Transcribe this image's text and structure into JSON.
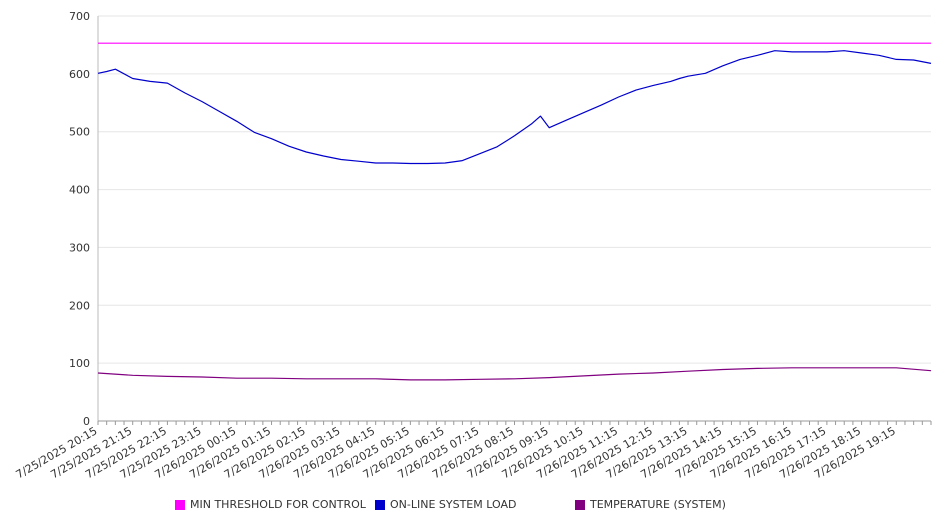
{
  "chart_data": {
    "type": "line",
    "title": "",
    "xlabel": "",
    "ylabel": "",
    "ylim": [
      0,
      700
    ],
    "yticks": [
      0,
      100,
      200,
      300,
      400,
      500,
      600,
      700
    ],
    "grid": true,
    "legend_position": "bottom",
    "x_tick_labels": [
      "7/25/2025 20:15",
      "7/25/2025 21:15",
      "7/25/2025 22:15",
      "7/25/2025 23:15",
      "7/26/2025 00:15",
      "7/26/2025 01:15",
      "7/26/2025 02:15",
      "7/26/2025 03:15",
      "7/26/2025 04:15",
      "7/26/2025 05:15",
      "7/26/2025 06:15",
      "7/26/2025 07:15",
      "7/26/2025 08:15",
      "7/26/2025 09:15",
      "7/26/2025 10:15",
      "7/26/2025 11:15",
      "7/26/2025 12:15",
      "7/26/2025 13:15",
      "7/26/2025 14:15",
      "7/26/2025 15:15",
      "7/26/2025 16:15",
      "7/26/2025 17:15",
      "7/26/2025 18:15",
      "7/26/2025 19:15"
    ],
    "series": [
      {
        "name": "MIN THRESHOLD FOR CONTROL",
        "color": "#ff00ff",
        "x": [
          "7/25/2025 20:15",
          "7/26/2025 20:15"
        ],
        "values": [
          653,
          653
        ]
      },
      {
        "name": "ON-LINE SYSTEM LOAD",
        "color": "#0000cc",
        "x": [
          "7/25/2025 20:15",
          "7/25/2025 20:30",
          "7/25/2025 20:45",
          "7/25/2025 21:15",
          "7/25/2025 21:45",
          "7/25/2025 22:15",
          "7/25/2025 22:45",
          "7/25/2025 23:15",
          "7/25/2025 23:45",
          "7/26/2025 00:15",
          "7/26/2025 00:45",
          "7/26/2025 01:15",
          "7/26/2025 01:45",
          "7/26/2025 02:15",
          "7/26/2025 02:45",
          "7/26/2025 03:15",
          "7/26/2025 03:45",
          "7/26/2025 04:15",
          "7/26/2025 04:45",
          "7/26/2025 05:15",
          "7/26/2025 05:45",
          "7/26/2025 06:15",
          "7/26/2025 06:45",
          "7/26/2025 07:15",
          "7/26/2025 07:45",
          "7/26/2025 08:15",
          "7/26/2025 08:45",
          "7/26/2025 09:00",
          "7/26/2025 09:15",
          "7/26/2025 09:45",
          "7/26/2025 10:15",
          "7/26/2025 10:45",
          "7/26/2025 11:15",
          "7/26/2025 11:45",
          "7/26/2025 12:15",
          "7/26/2025 12:45",
          "7/26/2025 13:00",
          "7/26/2025 13:15",
          "7/26/2025 13:45",
          "7/26/2025 14:15",
          "7/26/2025 14:45",
          "7/26/2025 15:15",
          "7/26/2025 15:45",
          "7/26/2025 16:15",
          "7/26/2025 16:45",
          "7/26/2025 17:15",
          "7/26/2025 17:45",
          "7/26/2025 18:15",
          "7/26/2025 18:45",
          "7/26/2025 19:15",
          "7/26/2025 19:45",
          "7/26/2025 20:15"
        ],
        "values": [
          601,
          604,
          608,
          592,
          587,
          584,
          567,
          552,
          535,
          518,
          499,
          488,
          475,
          465,
          458,
          452,
          449,
          446,
          446,
          445,
          445,
          446,
          450,
          462,
          474,
          493,
          514,
          527,
          507,
          520,
          533,
          546,
          560,
          572,
          580,
          587,
          592,
          596,
          601,
          614,
          625,
          632,
          640,
          638,
          638,
          638,
          640,
          636,
          632,
          625,
          624,
          618
        ]
      },
      {
        "name": "TEMPERATURE (SYSTEM)",
        "color": "#800080",
        "x": [
          "7/25/2025 20:15",
          "7/25/2025 21:15",
          "7/25/2025 22:15",
          "7/25/2025 23:15",
          "7/26/2025 00:15",
          "7/26/2025 01:15",
          "7/26/2025 02:15",
          "7/26/2025 03:15",
          "7/26/2025 04:15",
          "7/26/2025 05:15",
          "7/26/2025 06:15",
          "7/26/2025 07:15",
          "7/26/2025 08:15",
          "7/26/2025 09:15",
          "7/26/2025 10:15",
          "7/26/2025 11:15",
          "7/26/2025 12:15",
          "7/26/2025 13:15",
          "7/26/2025 14:15",
          "7/26/2025 15:15",
          "7/26/2025 16:15",
          "7/26/2025 17:15",
          "7/26/2025 18:15",
          "7/26/2025 19:15",
          "7/26/2025 20:15"
        ],
        "values": [
          83,
          79,
          77,
          76,
          74,
          74,
          73,
          73,
          73,
          71,
          71,
          72,
          73,
          75,
          78,
          81,
          83,
          86,
          89,
          91,
          92,
          92,
          92,
          92,
          87
        ]
      }
    ]
  }
}
